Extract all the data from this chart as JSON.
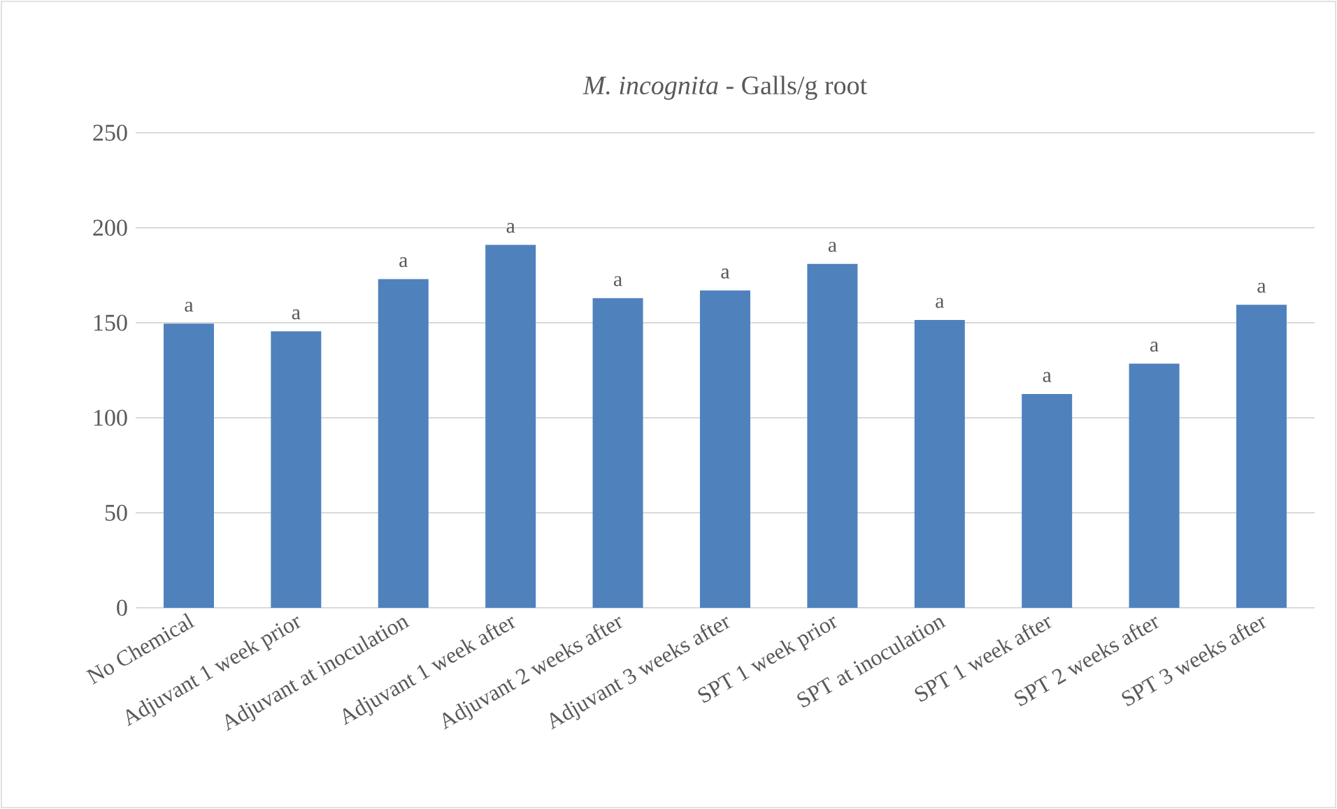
{
  "chart_data": {
    "type": "bar",
    "title": "*M. incognita* - Galls/g root",
    "categories": [
      "No Chemical",
      "Adjuvant 1 week prior",
      "Adjuvant at inoculation",
      "Adjuvant 1 week after",
      "Adjuvant 2 weeks after",
      "Adjuvant 3 weeks after",
      "SPT 1 week prior",
      "SPT at inoculation",
      "SPT 1 week after",
      "SPT 2 weeks after",
      "SPT 3 weeks after"
    ],
    "values": [
      149.5,
      145.5,
      173,
      191,
      163,
      167,
      181,
      151.5,
      112.5,
      128.5,
      159.5
    ],
    "color": "#4f81bd",
    "ylim": [
      0,
      250
    ],
    "yticks": [
      0,
      50,
      100,
      150,
      200,
      250
    ],
    "grid": "y",
    "annotations": [
      {
        "text": "a",
        "x": "No Chemical",
        "y": 149.5
      },
      {
        "text": "a",
        "x": "Adjuvant 1 week prior",
        "y": 145.5
      },
      {
        "text": "a",
        "x": "Adjuvant at inoculation",
        "y": 173
      },
      {
        "text": "a",
        "x": "Adjuvant 1 week after",
        "y": 191
      },
      {
        "text": "a",
        "x": "Adjuvant 2 weeks after",
        "y": 163
      },
      {
        "text": "a",
        "x": "Adjuvant 3 weeks after",
        "y": 167
      },
      {
        "text": "a",
        "x": "SPT 1 week prior",
        "y": 181
      },
      {
        "text": "a",
        "x": "SPT at inoculation",
        "y": 151.5
      },
      {
        "text": "a",
        "x": "SPT 1 week after",
        "y": 112.5
      },
      {
        "text": "a",
        "x": "SPT 2 weeks after",
        "y": 128.5
      },
      {
        "text": "a",
        "x": "SPT 3 weeks after",
        "y": 159.5
      }
    ]
  }
}
